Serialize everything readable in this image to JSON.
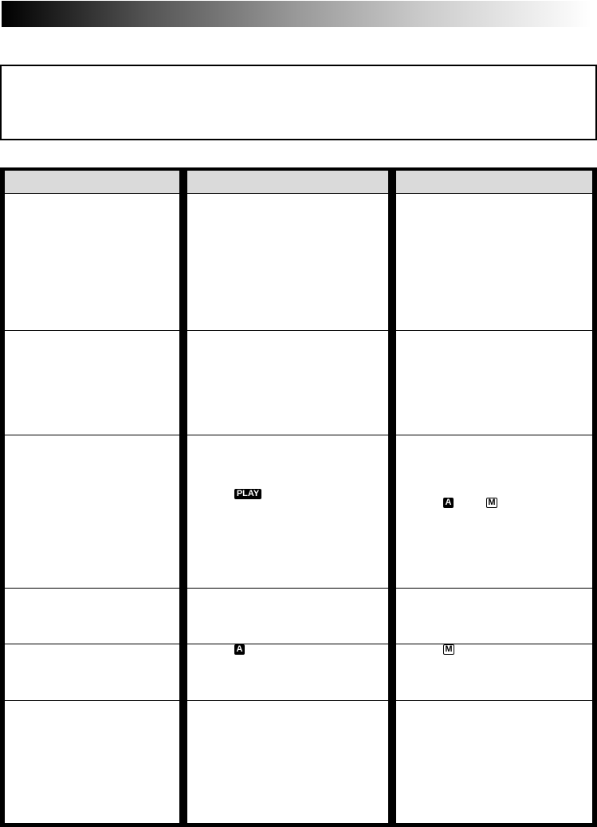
{
  "icons": {
    "play": "PLAY",
    "auto": "A",
    "manual": "M"
  },
  "colors": {
    "header_bg": "#dadada",
    "border": "#000000"
  }
}
